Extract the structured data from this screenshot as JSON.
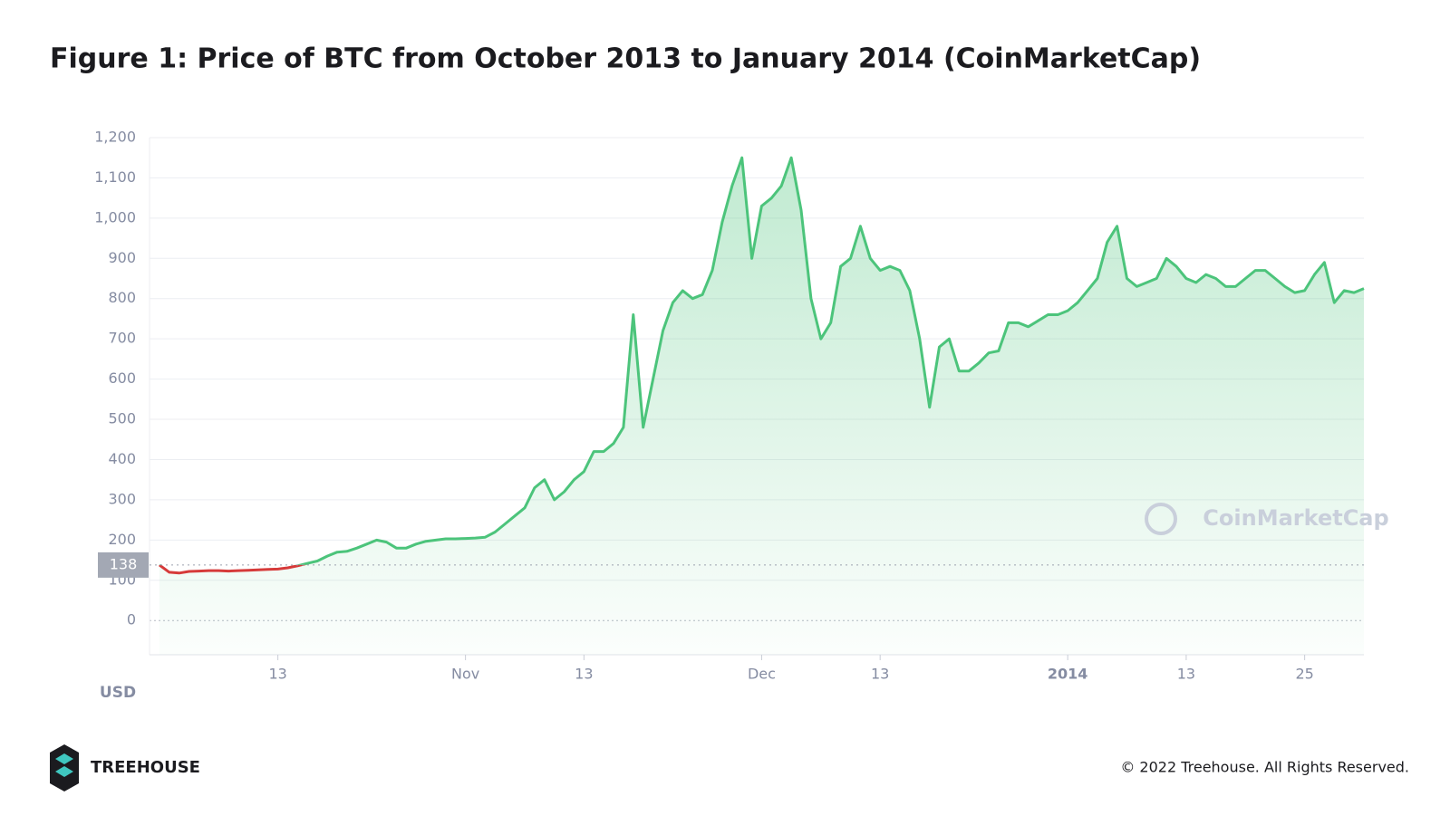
{
  "chart_data": {
    "type": "line",
    "title": "Figure 1: Price of BTC from October 2013 to January 2014 (CoinMarketCap)",
    "y_label": "USD",
    "watermark": "CoinMarketCap",
    "color": "#4cc47b",
    "down_color": "#d63a3a",
    "baseline": 138,
    "x": [
      "2013-10-01",
      "2013-10-02",
      "2013-10-03",
      "2013-10-04",
      "2013-10-05",
      "2013-10-06",
      "2013-10-07",
      "2013-10-08",
      "2013-10-09",
      "2013-10-10",
      "2013-10-11",
      "2013-10-12",
      "2013-10-13",
      "2013-10-14",
      "2013-10-15",
      "2013-10-16",
      "2013-10-17",
      "2013-10-18",
      "2013-10-19",
      "2013-10-20",
      "2013-10-21",
      "2013-10-22",
      "2013-10-23",
      "2013-10-24",
      "2013-10-25",
      "2013-10-26",
      "2013-10-27",
      "2013-10-28",
      "2013-10-29",
      "2013-10-30",
      "2013-10-31",
      "2013-11-01",
      "2013-11-02",
      "2013-11-03",
      "2013-11-04",
      "2013-11-05",
      "2013-11-06",
      "2013-11-07",
      "2013-11-08",
      "2013-11-09",
      "2013-11-10",
      "2013-11-11",
      "2013-11-12",
      "2013-11-13",
      "2013-11-14",
      "2013-11-15",
      "2013-11-16",
      "2013-11-17",
      "2013-11-18",
      "2013-11-19",
      "2013-11-20",
      "2013-11-21",
      "2013-11-22",
      "2013-11-23",
      "2013-11-24",
      "2013-11-25",
      "2013-11-26",
      "2013-11-27",
      "2013-11-28",
      "2013-11-29",
      "2013-11-30",
      "2013-12-01",
      "2013-12-02",
      "2013-12-03",
      "2013-12-04",
      "2013-12-05",
      "2013-12-06",
      "2013-12-07",
      "2013-12-08",
      "2013-12-09",
      "2013-12-10",
      "2013-12-11",
      "2013-12-12",
      "2013-12-13",
      "2013-12-14",
      "2013-12-15",
      "2013-12-16",
      "2013-12-17",
      "2013-12-18",
      "2013-12-19",
      "2013-12-20",
      "2013-12-21",
      "2013-12-22",
      "2013-12-23",
      "2013-12-24",
      "2013-12-25",
      "2013-12-26",
      "2013-12-27",
      "2013-12-28",
      "2013-12-29",
      "2013-12-30",
      "2013-12-31",
      "2014-01-01",
      "2014-01-02",
      "2014-01-03",
      "2014-01-04",
      "2014-01-05",
      "2014-01-06",
      "2014-01-07",
      "2014-01-08",
      "2014-01-09",
      "2014-01-10",
      "2014-01-11",
      "2014-01-12",
      "2014-01-13",
      "2014-01-14",
      "2014-01-15",
      "2014-01-16",
      "2014-01-17",
      "2014-01-18",
      "2014-01-19",
      "2014-01-20",
      "2014-01-21",
      "2014-01-22",
      "2014-01-23",
      "2014-01-24",
      "2014-01-25",
      "2014-01-26",
      "2014-01-27",
      "2014-01-28",
      "2014-01-29",
      "2014-01-30",
      "2014-01-31"
    ],
    "values": [
      138,
      120,
      118,
      122,
      123,
      124,
      124,
      123,
      124,
      125,
      126,
      127,
      128,
      131,
      136,
      142,
      148,
      160,
      170,
      172,
      180,
      190,
      200,
      195,
      180,
      180,
      190,
      197,
      200,
      203,
      203,
      204,
      205,
      207,
      220,
      240,
      260,
      280,
      330,
      350,
      300,
      320,
      350,
      370,
      420,
      420,
      440,
      480,
      760,
      480,
      600,
      720,
      790,
      820,
      800,
      810,
      870,
      990,
      1080,
      1150,
      900,
      1030,
      1050,
      1080,
      1150,
      1020,
      800,
      700,
      740,
      880,
      900,
      980,
      900,
      870,
      880,
      870,
      820,
      700,
      530,
      680,
      700,
      620,
      620,
      640,
      665,
      670,
      740,
      740,
      730,
      745,
      760,
      760,
      770,
      790,
      820,
      850,
      940,
      980,
      850,
      830,
      840,
      850,
      900,
      880,
      850,
      840,
      860,
      850,
      830,
      830,
      850,
      870,
      870,
      850,
      830,
      815,
      820,
      860,
      890,
      790,
      820,
      815,
      825
    ],
    "xlim": [
      "2013-09-30",
      "2014-01-31"
    ],
    "xticks": [
      {
        "value": "2013-10-13",
        "label": "13"
      },
      {
        "value": "2013-11-01",
        "label": "Nov"
      },
      {
        "value": "2013-11-13",
        "label": "13"
      },
      {
        "value": "2013-12-01",
        "label": "Dec"
      },
      {
        "value": "2013-12-13",
        "label": "13"
      },
      {
        "value": "2014-01-01",
        "label": "2014"
      },
      {
        "value": "2014-01-13",
        "label": "13"
      },
      {
        "value": "2014-01-25",
        "label": "25"
      }
    ],
    "ylim": [
      -85,
      1200
    ],
    "yticks": [
      0,
      100,
      200,
      300,
      400,
      500,
      600,
      700,
      800,
      900,
      {
        "value": 1000,
        "label": "1,000"
      },
      {
        "value": 1100,
        "label": "1,100"
      },
      {
        "value": 1200,
        "label": "1,200"
      }
    ],
    "grid": true
  },
  "footer": {
    "brand": "TREEHOUSE",
    "copyright": "© 2022 Treehouse. All Rights Reserved."
  }
}
